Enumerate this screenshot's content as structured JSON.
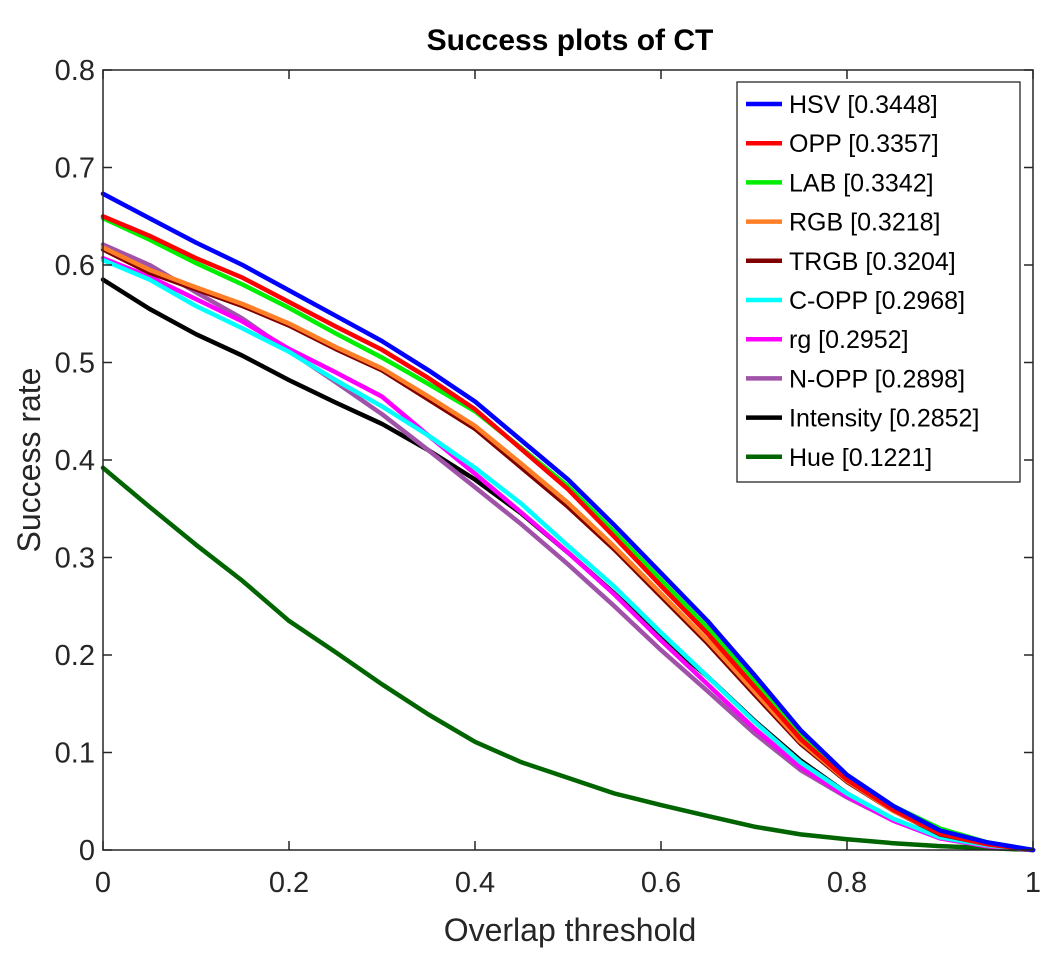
{
  "chart_data": {
    "type": "line",
    "title": "Success plots of CT",
    "xlabel": "Overlap threshold",
    "ylabel": "Success rate",
    "xlim": [
      0,
      1
    ],
    "ylim": [
      0,
      0.8
    ],
    "xticks": [
      0,
      0.2,
      0.4,
      0.6,
      0.8,
      1
    ],
    "xtick_labels": [
      "0",
      "0.2",
      "0.4",
      "0.6",
      "0.8",
      "1"
    ],
    "yticks": [
      0,
      0.1,
      0.2,
      0.3,
      0.4,
      0.5,
      0.6,
      0.7,
      0.8
    ],
    "ytick_labels": [
      "0",
      "0.1",
      "0.2",
      "0.3",
      "0.4",
      "0.5",
      "0.6",
      "0.7",
      "0.8"
    ],
    "grid": false,
    "legend_position": "top-right",
    "x": [
      0,
      0.05,
      0.1,
      0.15,
      0.2,
      0.25,
      0.3,
      0.35,
      0.4,
      0.45,
      0.5,
      0.55,
      0.6,
      0.65,
      0.7,
      0.75,
      0.8,
      0.85,
      0.9,
      0.95,
      1.0
    ],
    "series": [
      {
        "name": "HSV [0.3448]",
        "color": "#0000ff",
        "values": [
          0.673,
          0.648,
          0.623,
          0.6,
          0.574,
          0.548,
          0.522,
          0.492,
          0.46,
          0.42,
          0.38,
          0.333,
          0.284,
          0.235,
          0.18,
          0.123,
          0.077,
          0.045,
          0.02,
          0.008,
          0.0
        ]
      },
      {
        "name": "OPP [0.3357]",
        "color": "#ff0000",
        "values": [
          0.65,
          0.63,
          0.607,
          0.587,
          0.562,
          0.537,
          0.513,
          0.484,
          0.452,
          0.411,
          0.37,
          0.321,
          0.271,
          0.222,
          0.168,
          0.114,
          0.072,
          0.041,
          0.017,
          0.006,
          0.0
        ]
      },
      {
        "name": "LAB [0.3342]",
        "color": "#00ee00",
        "values": [
          0.648,
          0.626,
          0.602,
          0.58,
          0.556,
          0.53,
          0.505,
          0.478,
          0.45,
          0.412,
          0.373,
          0.326,
          0.277,
          0.228,
          0.173,
          0.119,
          0.075,
          0.045,
          0.022,
          0.008,
          0.0
        ]
      },
      {
        "name": "RGB [0.3218]",
        "color": "#ff7f27",
        "values": [
          0.618,
          0.595,
          0.577,
          0.56,
          0.54,
          0.516,
          0.494,
          0.465,
          0.435,
          0.396,
          0.356,
          0.311,
          0.263,
          0.215,
          0.163,
          0.111,
          0.071,
          0.04,
          0.017,
          0.006,
          0.0
        ]
      },
      {
        "name": "TRGB [0.3204]",
        "color": "#800000",
        "values": [
          0.616,
          0.592,
          0.575,
          0.558,
          0.538,
          0.514,
          0.492,
          0.462,
          0.432,
          0.392,
          0.352,
          0.308,
          0.26,
          0.212,
          0.16,
          0.109,
          0.07,
          0.04,
          0.016,
          0.006,
          0.0
        ]
      },
      {
        "name": "C-OPP [0.2968]",
        "color": "#00ffff",
        "values": [
          0.605,
          0.585,
          0.558,
          0.535,
          0.511,
          0.482,
          0.455,
          0.425,
          0.392,
          0.355,
          0.312,
          0.27,
          0.223,
          0.178,
          0.132,
          0.09,
          0.058,
          0.032,
          0.013,
          0.005,
          0.0
        ]
      },
      {
        "name": "rg [0.2952]",
        "color": "#ff00ff",
        "values": [
          0.607,
          0.588,
          0.565,
          0.542,
          0.514,
          0.49,
          0.465,
          0.425,
          0.386,
          0.346,
          0.305,
          0.262,
          0.215,
          0.17,
          0.125,
          0.085,
          0.055,
          0.03,
          0.012,
          0.004,
          0.0
        ]
      },
      {
        "name": "N-OPP [0.2898]",
        "color": "#a052a8",
        "values": [
          0.621,
          0.6,
          0.572,
          0.545,
          0.512,
          0.48,
          0.447,
          0.41,
          0.372,
          0.334,
          0.293,
          0.25,
          0.205,
          0.163,
          0.12,
          0.082,
          0.054,
          0.03,
          0.012,
          0.004,
          0.0
        ]
      },
      {
        "name": "Intensity [0.2852]",
        "color": "#000000",
        "values": [
          0.585,
          0.555,
          0.529,
          0.507,
          0.482,
          0.459,
          0.437,
          0.41,
          0.38,
          0.345,
          0.305,
          0.263,
          0.218,
          0.178,
          0.133,
          0.092,
          0.058,
          0.031,
          0.014,
          0.006,
          0.0
        ]
      },
      {
        "name": "Hue [0.1221]",
        "color": "#006400",
        "values": [
          0.392,
          0.352,
          0.313,
          0.276,
          0.235,
          0.203,
          0.17,
          0.139,
          0.111,
          0.09,
          0.074,
          0.058,
          0.046,
          0.035,
          0.024,
          0.016,
          0.011,
          0.007,
          0.004,
          0.002,
          0.0
        ]
      }
    ]
  }
}
